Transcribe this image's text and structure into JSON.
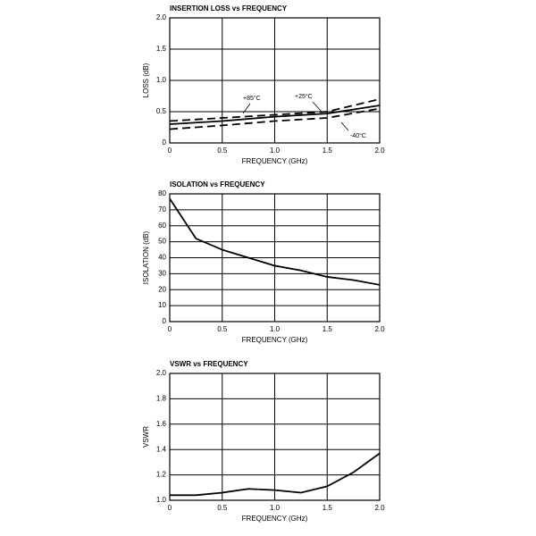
{
  "chart_data": [
    {
      "type": "line",
      "title": "INSERTION LOSS vs FREQUENCY",
      "xlabel": "FREQUENCY (GHz)",
      "ylabel": "LOSS (dB)",
      "x": [
        0,
        0.5,
        1,
        1.5,
        2
      ],
      "series": [
        {
          "name": "+85°C",
          "color": "#000000",
          "dashed": true,
          "values": [
            0.35,
            0.4,
            0.45,
            0.5,
            0.7
          ]
        },
        {
          "name": "+25°C",
          "color": "#000000",
          "dashed": false,
          "values": [
            0.3,
            0.35,
            0.42,
            0.47,
            0.6
          ]
        },
        {
          "name": "-40°C",
          "color": "#000000",
          "dashed": true,
          "values": [
            0.22,
            0.28,
            0.35,
            0.4,
            0.55
          ]
        }
      ],
      "xlim": [
        0,
        2
      ],
      "xticks": [
        0,
        0.5,
        {
          "value": 1,
          "label": "1.0"
        },
        1.5,
        {
          "value": 2,
          "label": "2.0"
        }
      ],
      "ylim": [
        0,
        2
      ],
      "yticks": [
        0,
        0.5,
        {
          "value": 1,
          "label": "1.0"
        },
        1.5,
        {
          "value": 2,
          "label": "2.0"
        }
      ],
      "grid": true
    },
    {
      "type": "line",
      "title": "ISOLATION vs FREQUENCY",
      "xlabel": "FREQUENCY (GHz)",
      "ylabel": "ISOLATION (dB)",
      "x": [
        0,
        0.25,
        0.5,
        0.75,
        1,
        1.25,
        1.5,
        1.75,
        2
      ],
      "values": [
        77,
        52,
        45,
        40,
        35,
        32,
        28,
        26,
        23
      ],
      "color": "#000000",
      "xlim": [
        0,
        2
      ],
      "xticks": [
        0,
        0.5,
        {
          "value": 1,
          "label": "1.0"
        },
        1.5,
        {
          "value": 2,
          "label": "2.0"
        }
      ],
      "ylim": [
        0,
        80
      ],
      "yticks": [
        0,
        10,
        20,
        30,
        40,
        50,
        60,
        70,
        80
      ],
      "grid": true
    },
    {
      "type": "line",
      "title": "VSWR vs FREQUENCY",
      "xlabel": "FREQUENCY (GHz)",
      "ylabel": "VSWR",
      "x": [
        0,
        0.25,
        0.5,
        0.75,
        1,
        1.25,
        1.5,
        1.75,
        2
      ],
      "values": [
        1.04,
        1.04,
        1.06,
        1.09,
        1.08,
        1.06,
        1.11,
        1.22,
        1.37
      ],
      "color": "#000000",
      "xlim": [
        0,
        2
      ],
      "xticks": [
        0,
        0.5,
        {
          "value": 1,
          "label": "1.0"
        },
        1.5,
        {
          "value": 2,
          "label": "2.0"
        }
      ],
      "ylim": [
        1,
        2
      ],
      "yticks": [
        {
          "value": 1,
          "label": "1.0"
        },
        1.2,
        1.4,
        1.6,
        1.8,
        {
          "value": 2,
          "label": "2.0"
        }
      ],
      "grid": true
    }
  ]
}
